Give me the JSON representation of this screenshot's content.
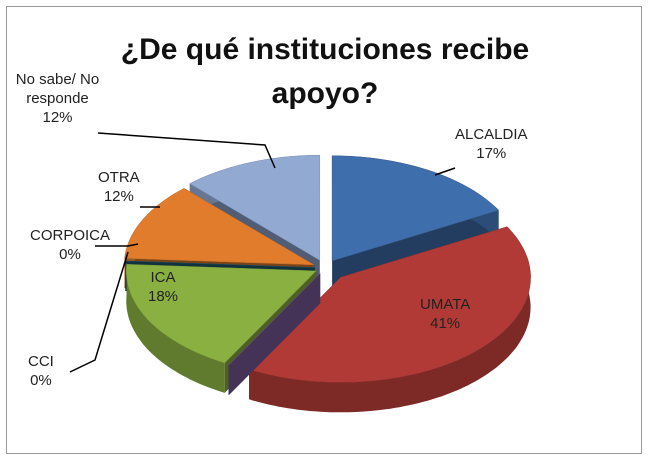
{
  "chart_data": {
    "type": "pie3d",
    "title": "¿De qué instituciones recibe apoyo?",
    "categories": [
      "ALCALDIA",
      "UMATA",
      "CCI",
      "ICA",
      "CORPOICA",
      "OTRA",
      "No sabe/ No responde"
    ],
    "values": [
      17,
      41,
      0,
      18,
      0,
      12,
      12
    ],
    "value_labels": [
      "17%",
      "41%",
      "0%",
      "18%",
      "0%",
      "12%",
      "12%"
    ],
    "colors": [
      "#3e6eac",
      "#b23a36",
      "#7b5c9e",
      "#8bb042",
      "#1e5a6e",
      "#e07c2c",
      "#92a9d2"
    ]
  }
}
